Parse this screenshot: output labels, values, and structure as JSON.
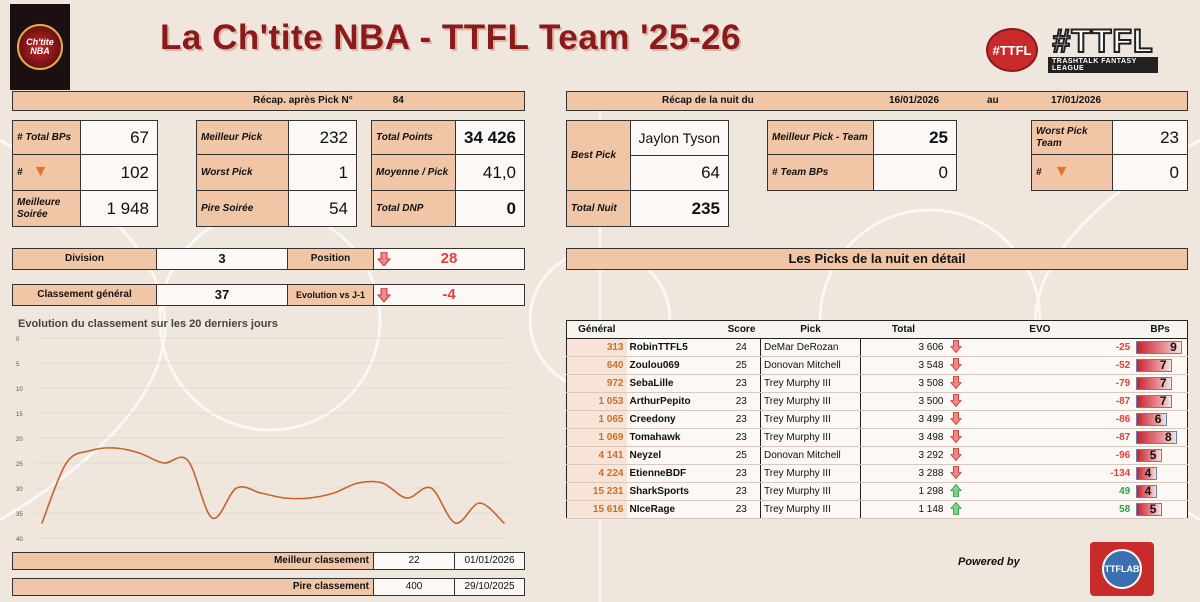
{
  "header": {
    "title": "La Ch'tite NBA - TTFL Team '25-26",
    "logo_left_text": "Ch'tite NBA",
    "logo_right_small": "#TTFL",
    "logo_right_big": "#TTFL",
    "logo_right_sub": "TRASHTALK FANTASY LEAGUE"
  },
  "recap": {
    "label": "Récap. après Pick N°",
    "pick_number": "84",
    "total_bps_label": "# Total BPs",
    "total_bps": "67",
    "carrot_label": "#",
    "carrots": "102",
    "best_soiree_label": "Meilleure Soirée",
    "best_soiree": "1 948",
    "best_pick_label": "Meilleur Pick",
    "best_pick": "232",
    "worst_pick_label": "Worst Pick",
    "worst_pick": "1",
    "worst_soiree_label": "Pire Soirée",
    "worst_soiree": "54",
    "total_points_label": "Total Points",
    "total_points": "34 426",
    "avg_label": "Moyenne / Pick",
    "avg": "41,0",
    "dnp_label": "Total DNP",
    "dnp": "0"
  },
  "night": {
    "label": "Récap de la nuit du",
    "from": "16/01/2026",
    "au": "au",
    "to": "17/01/2026",
    "best_pick_label": "Best Pick",
    "best_pick_player": "Jaylon Tyson",
    "best_pick_score": "64",
    "total_nuit_label": "Total Nuit",
    "total_nuit": "235",
    "team_best_label": "Meilleur Pick - Team",
    "team_best": "25",
    "team_bps_label": "# Team BPs",
    "team_bps": "0",
    "team_worst_label": "Worst Pick Team",
    "team_worst": "23",
    "team_carrot_label": "#",
    "team_carrots": "0"
  },
  "standing": {
    "division_label": "Division",
    "division": "3",
    "position_label": "Position",
    "position": "28",
    "general_label": "Classement général",
    "general": "37",
    "evolution_label": "Evolution vs J-1",
    "evolution": "-4"
  },
  "chart_data": {
    "type": "line",
    "title": "Evolution du classement sur les 20 derniers jours",
    "xlabel": "",
    "ylabel": "",
    "ylim": [
      40,
      0
    ],
    "yticks": [
      "0",
      "5",
      "10",
      "15",
      "20",
      "25",
      "30",
      "35",
      "40"
    ],
    "series": [
      {
        "values": [
          37,
          25,
          22.5,
          22,
          23,
          25,
          24.5,
          36,
          30,
          31,
          32,
          32,
          31,
          29,
          29,
          32,
          30,
          37,
          33,
          37
        ]
      }
    ],
    "color": "#c8642a",
    "grid": true
  },
  "extremes": {
    "best_label": "Meilleur classement",
    "best_value": "22",
    "best_date": "01/01/2026",
    "worst_label": "Pire classement",
    "worst_value": "400",
    "worst_date": "29/10/2025"
  },
  "picks_panel": {
    "title": "Les Picks de la nuit en détail",
    "headers": [
      "Général",
      "Score",
      "Pick",
      "Total",
      "EVO",
      "BPs"
    ],
    "rows": [
      {
        "general": "313",
        "name": "RobinTTFL5",
        "score": "24",
        "pick": "DeMar DeRozan",
        "total": "3 606",
        "evo": "-25",
        "dir": "down",
        "bps": 9
      },
      {
        "general": "640",
        "name": "Zoulou069",
        "score": "25",
        "pick": "Donovan Mitchell",
        "total": "3 548",
        "evo": "-52",
        "dir": "down",
        "bps": 7
      },
      {
        "general": "972",
        "name": "SebaLille",
        "score": "23",
        "pick": "Trey Murphy III",
        "total": "3 508",
        "evo": "-79",
        "dir": "down",
        "bps": 7
      },
      {
        "general": "1 053",
        "name": "ArthurPepito",
        "score": "23",
        "pick": "Trey Murphy III",
        "total": "3 500",
        "evo": "-87",
        "dir": "down",
        "bps": 7
      },
      {
        "general": "1 065",
        "name": "Creedony",
        "score": "23",
        "pick": "Trey Murphy III",
        "total": "3 499",
        "evo": "-86",
        "dir": "down",
        "bps": 6
      },
      {
        "general": "1 069",
        "name": "Tomahawk",
        "score": "23",
        "pick": "Trey Murphy III",
        "total": "3 498",
        "evo": "-87",
        "dir": "down",
        "bps": 8
      },
      {
        "general": "4 141",
        "name": "Neyzel",
        "score": "25",
        "pick": "Donovan Mitchell",
        "total": "3 292",
        "evo": "-96",
        "dir": "down",
        "bps": 5
      },
      {
        "general": "4 224",
        "name": "EtienneBDF",
        "score": "23",
        "pick": "Trey Murphy III",
        "total": "3 288",
        "evo": "-134",
        "dir": "down",
        "bps": 4
      },
      {
        "general": "15 231",
        "name": "SharkSports",
        "score": "23",
        "pick": "Trey Murphy III",
        "total": "1 298",
        "evo": "49",
        "dir": "up",
        "bps": 4
      },
      {
        "general": "15 616",
        "name": "NIceRage",
        "score": "23",
        "pick": "Trey Murphy III",
        "total": "1 148",
        "evo": "58",
        "dir": "up",
        "bps": 5
      }
    ]
  },
  "footer": {
    "powered_by": "Powered by",
    "logo": "TTFLAB"
  },
  "colors": {
    "title": "#8b1a1a",
    "peach": "#f1c6a7",
    "negative": "#e0413a",
    "positive": "#2f9e44",
    "line": "#c8642a"
  }
}
